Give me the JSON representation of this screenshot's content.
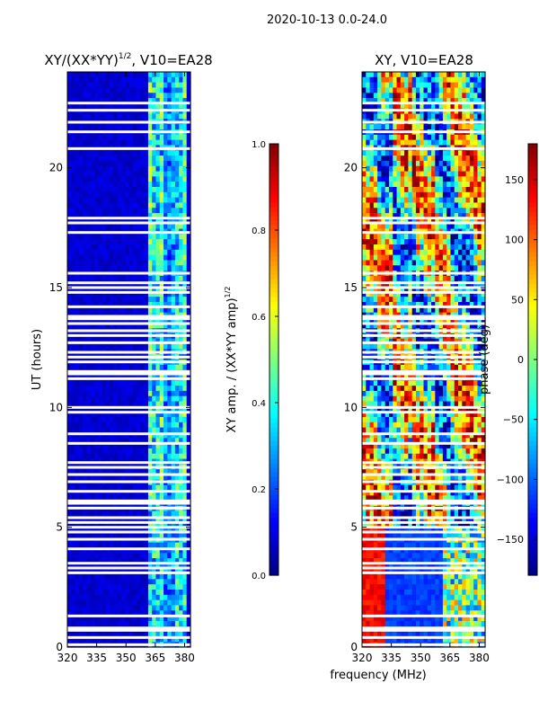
{
  "figure": {
    "suptitle": "2020-10-13 0.0-24.0",
    "shared_xlabel": "frequency (MHz)"
  },
  "colors": {
    "background": "#ffffff",
    "flagged_rows": "#ffffff",
    "jet_stops": [
      "#00007f",
      "#0000ff",
      "#007fff",
      "#00ffff",
      "#7fff7f",
      "#ffff00",
      "#ff7f00",
      "#ff0000",
      "#7f0000"
    ]
  },
  "chart_data": [
    {
      "type": "heatmap",
      "title_main": "XY/(XX*YY)",
      "title_sup": "1/2",
      "title_tail": ", V10=EA28",
      "xlabel": "",
      "ylabel": "UT (hours)",
      "xlim": [
        320,
        383
      ],
      "ylim": [
        0,
        24
      ],
      "xticks": [
        "320",
        "335",
        "350",
        "365",
        "380"
      ],
      "xtick_values": [
        320,
        335,
        350,
        365,
        380
      ],
      "yticks": [
        "0",
        "5",
        "10",
        "15",
        "20"
      ],
      "ytick_values": [
        0,
        5,
        10,
        15,
        20
      ],
      "colorbar": {
        "label_main": "XY amp. / (XX*YY amp)",
        "label_sup": "1/2",
        "range": [
          0.0,
          1.0
        ],
        "ticks": [
          "0.0",
          "0.2",
          "0.4",
          "0.6",
          "0.8",
          "1.0"
        ],
        "tick_values": [
          0.0,
          0.2,
          0.4,
          0.6,
          0.8,
          1.0
        ]
      },
      "flagged_hours": [
        0.1,
        0.4,
        0.7,
        0.8,
        1.3,
        3.1,
        3.3,
        3.5,
        4.1,
        4.5,
        4.8,
        5.0,
        5.2,
        5.4,
        5.8,
        6.0,
        6.1,
        6.5,
        6.9,
        7.2,
        7.5,
        7.7,
        8.5,
        8.9,
        9.8,
        10.0,
        11.2,
        11.4,
        11.5,
        11.9,
        12.1,
        12.3,
        12.7,
        13.0,
        13.2,
        13.5,
        13.7,
        13.8,
        14.2,
        14.8,
        15.0,
        15.2,
        15.6,
        17.3,
        17.7,
        17.9,
        20.8,
        21.5,
        21.9,
        22.4,
        22.7
      ]
    },
    {
      "type": "heatmap",
      "title_main": "XY, V10=EA28",
      "xlabel": "frequency (MHz)",
      "ylabel": "",
      "xlim": [
        320,
        383
      ],
      "ylim": [
        0,
        24
      ],
      "xticks": [
        "320",
        "335",
        "350",
        "365",
        "380"
      ],
      "xtick_values": [
        320,
        335,
        350,
        365,
        380
      ],
      "yticks": [
        "0",
        "5",
        "10",
        "15",
        "20"
      ],
      "ytick_values": [
        0,
        5,
        10,
        15,
        20
      ],
      "colorbar": {
        "label_main": "phase (deg)",
        "range": [
          -180,
          180
        ],
        "ticks": [
          "−150",
          "−100",
          "−50",
          "0",
          "50",
          "100",
          "150"
        ],
        "tick_values": [
          -150,
          -100,
          -50,
          0,
          50,
          100,
          150
        ]
      },
      "flagged_hours": [
        0.1,
        0.4,
        0.7,
        0.8,
        1.3,
        3.1,
        3.3,
        3.5,
        4.1,
        4.5,
        4.8,
        5.0,
        5.2,
        5.4,
        5.8,
        6.0,
        6.1,
        6.5,
        6.9,
        7.2,
        7.5,
        7.7,
        8.5,
        8.9,
        9.8,
        10.0,
        11.2,
        11.4,
        11.5,
        11.9,
        12.1,
        12.3,
        12.7,
        13.0,
        13.2,
        13.5,
        13.7,
        13.8,
        14.2,
        14.8,
        15.0,
        15.2,
        15.6,
        17.3,
        17.7,
        17.9,
        20.8,
        21.5,
        21.9,
        22.4,
        22.7
      ]
    }
  ]
}
